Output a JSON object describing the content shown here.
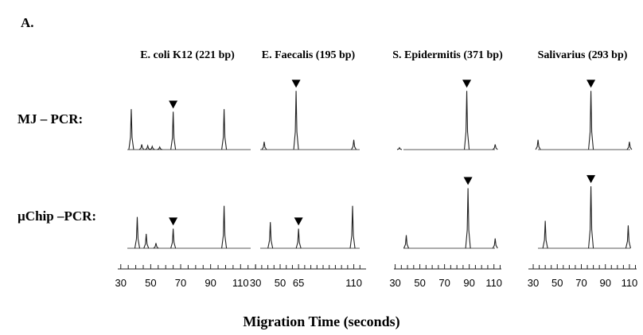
{
  "panel_label": "A.",
  "row_labels": [
    "MJ – PCR:",
    "µChip –PCR:"
  ],
  "x_label": "Migration Time (seconds)",
  "chart_data": [
    {
      "type": "electropherogram",
      "title": "E. coli K12 (221 bp)",
      "color": "#222222",
      "xlim": [
        28,
        121
      ],
      "ylim": [
        0,
        100
      ],
      "xticks": [
        30,
        50,
        70,
        90,
        110
      ],
      "minor_xticks": [
        35,
        40,
        45,
        55,
        60,
        65,
        75,
        80,
        85,
        95,
        100,
        105,
        115,
        120
      ],
      "series": [
        {
          "x": [
            37,
            44,
            48,
            51,
            56,
            65,
            99
          ],
          "values": [
            62,
            8,
            6,
            5,
            4,
            58,
            62
          ],
          "marker_x": 65
        },
        {
          "x": [
            41,
            47,
            53.5,
            65,
            99
          ],
          "values": [
            48,
            22,
            8,
            30,
            65
          ],
          "marker_x": 65
        }
      ]
    },
    {
      "type": "electropherogram",
      "title": "E. Faecalis (195 bp)",
      "color": "#222222",
      "xlim": [
        26,
        120
      ],
      "ylim": [
        0,
        100
      ],
      "xticks": [
        30,
        50,
        65,
        110
      ],
      "minor_xticks": [
        35,
        40,
        45,
        55,
        60,
        70,
        75,
        80,
        85,
        90,
        95,
        100,
        105,
        115
      ],
      "series": [
        {
          "x": [
            37,
            63,
            110
          ],
          "values": [
            12,
            90,
            15
          ],
          "marker_x": 63
        },
        {
          "x": [
            42,
            65,
            109
          ],
          "values": [
            40,
            30,
            65
          ],
          "marker_x": 65
        }
      ]
    },
    {
      "type": "electropherogram",
      "title": "S. Epidermitis (371 bp)",
      "color": "#222222",
      "xlim": [
        29,
        116
      ],
      "ylim": [
        0,
        100
      ],
      "xticks": [
        30,
        50,
        70,
        90,
        110
      ],
      "minor_xticks": [
        35,
        40,
        45,
        55,
        60,
        65,
        75,
        80,
        85,
        95,
        100,
        105,
        115
      ],
      "series": [
        {
          "x": [
            33.5,
            88,
            111
          ],
          "values": [
            3,
            90,
            8
          ],
          "marker_x": 88
        },
        {
          "x": [
            39,
            89,
            111
          ],
          "values": [
            20,
            92,
            15
          ],
          "marker_x": 89
        }
      ]
    },
    {
      "type": "electropherogram",
      "title": "Salivarius (293 bp)",
      "color": "#222222",
      "xlim": [
        26,
        116
      ],
      "ylim": [
        0,
        100
      ],
      "xticks": [
        30,
        50,
        70,
        90,
        110
      ],
      "minor_xticks": [
        35,
        40,
        45,
        55,
        60,
        65,
        75,
        80,
        85,
        95,
        100,
        105,
        115
      ],
      "series": [
        {
          "x": [
            34,
            78,
            110
          ],
          "values": [
            15,
            90,
            12
          ],
          "marker_x": 78
        },
        {
          "x": [
            40,
            78,
            109
          ],
          "values": [
            42,
            95,
            35
          ],
          "marker_x": 78
        }
      ]
    }
  ]
}
